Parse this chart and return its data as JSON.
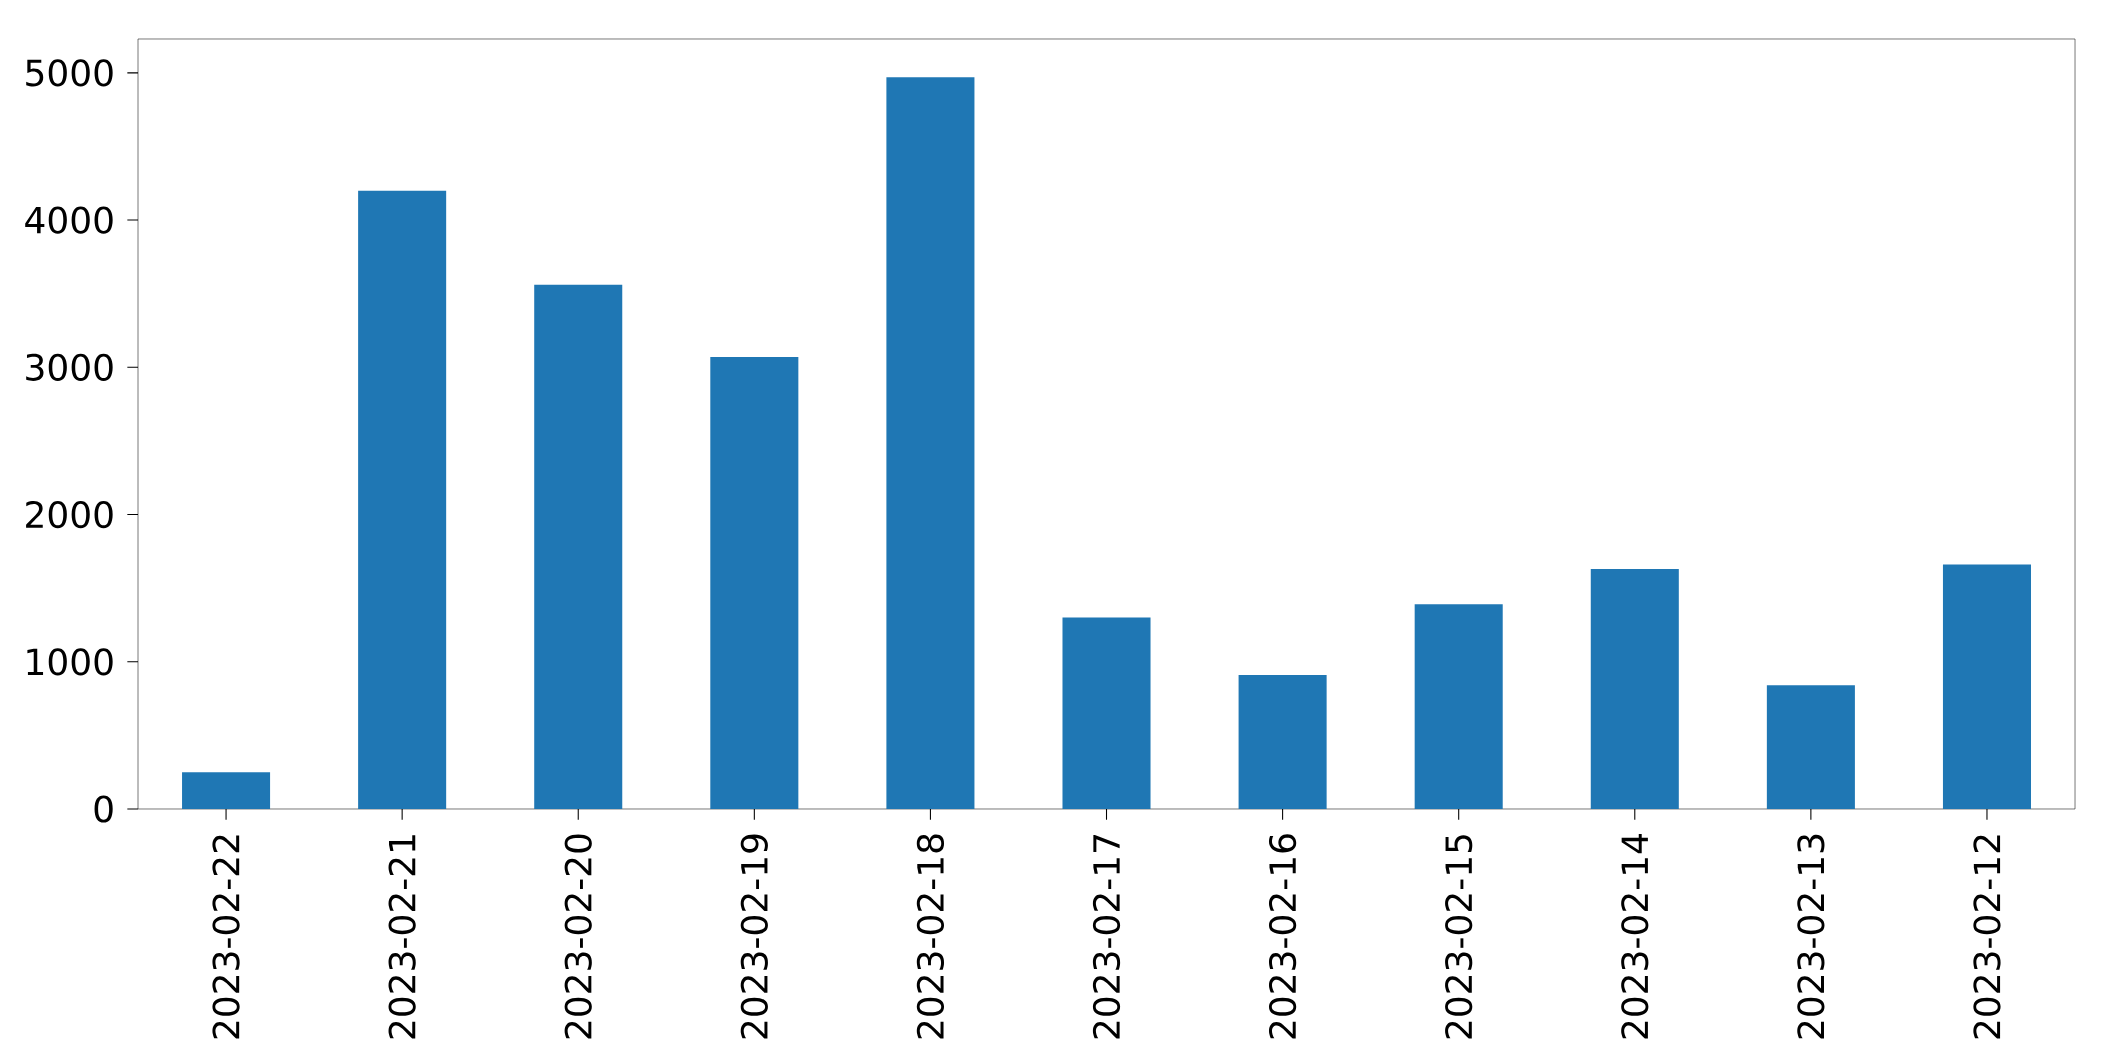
{
  "chart_data": {
    "type": "bar",
    "categories": [
      "2023-02-22",
      "2023-02-21",
      "2023-02-20",
      "2023-02-19",
      "2023-02-18",
      "2023-02-17",
      "2023-02-16",
      "2023-02-15",
      "2023-02-14",
      "2023-02-13",
      "2023-02-12"
    ],
    "values": [
      250,
      4200,
      3560,
      3070,
      4970,
      1300,
      910,
      1390,
      1630,
      840,
      1660
    ],
    "color": "#1f77b4",
    "ylim": [
      0,
      5230
    ],
    "yticks": [
      0,
      1000,
      2000,
      3000,
      4000,
      5000
    ]
  }
}
